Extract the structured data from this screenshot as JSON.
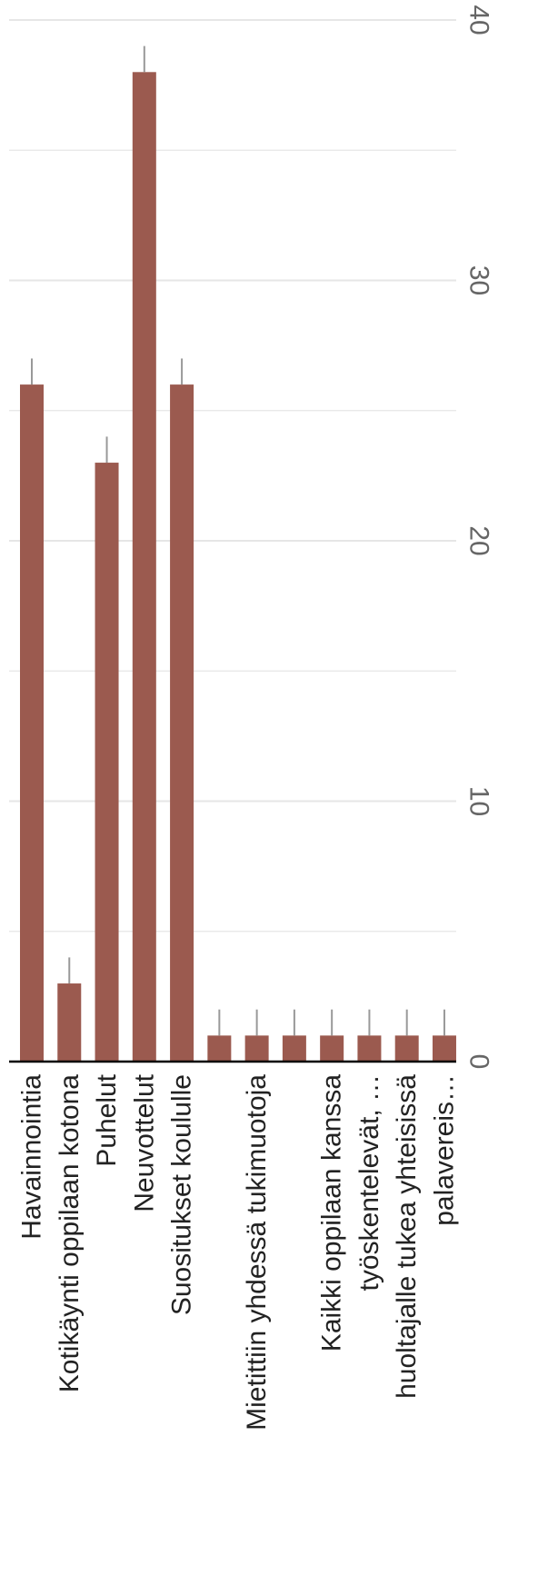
{
  "chart_data": {
    "type": "bar",
    "orientation": "rotated-90",
    "title": "",
    "xlabel": "",
    "ylabel": "",
    "categories": [
      "Havainnointia",
      "Kotikäynti oppilaan kotona",
      "Puhelut",
      "Neuvottelut",
      "Suositukset koululle",
      "",
      "Mietittiin yhdessä tukimuotoja",
      "",
      "Kaikki oppilaan kanssa",
      "työskentelevät, …",
      "huoltajalle tukea yhteisissä",
      "palavereis…"
    ],
    "series": [
      {
        "values": [
          26,
          3,
          23,
          38,
          26,
          1,
          1,
          1,
          1,
          1,
          1,
          1
        ],
        "error_upper": [
          1,
          1,
          1,
          1,
          1,
          1,
          1,
          1,
          1,
          1,
          1,
          1
        ]
      }
    ],
    "ylim": [
      0,
      40
    ],
    "yticks": [
      0,
      10,
      20,
      30,
      40
    ],
    "grid": true,
    "bar_color": "#9b5a4f",
    "error_bar_color": "#999999",
    "grid_color": "#e6e6e6",
    "axis_color": "#000000"
  }
}
